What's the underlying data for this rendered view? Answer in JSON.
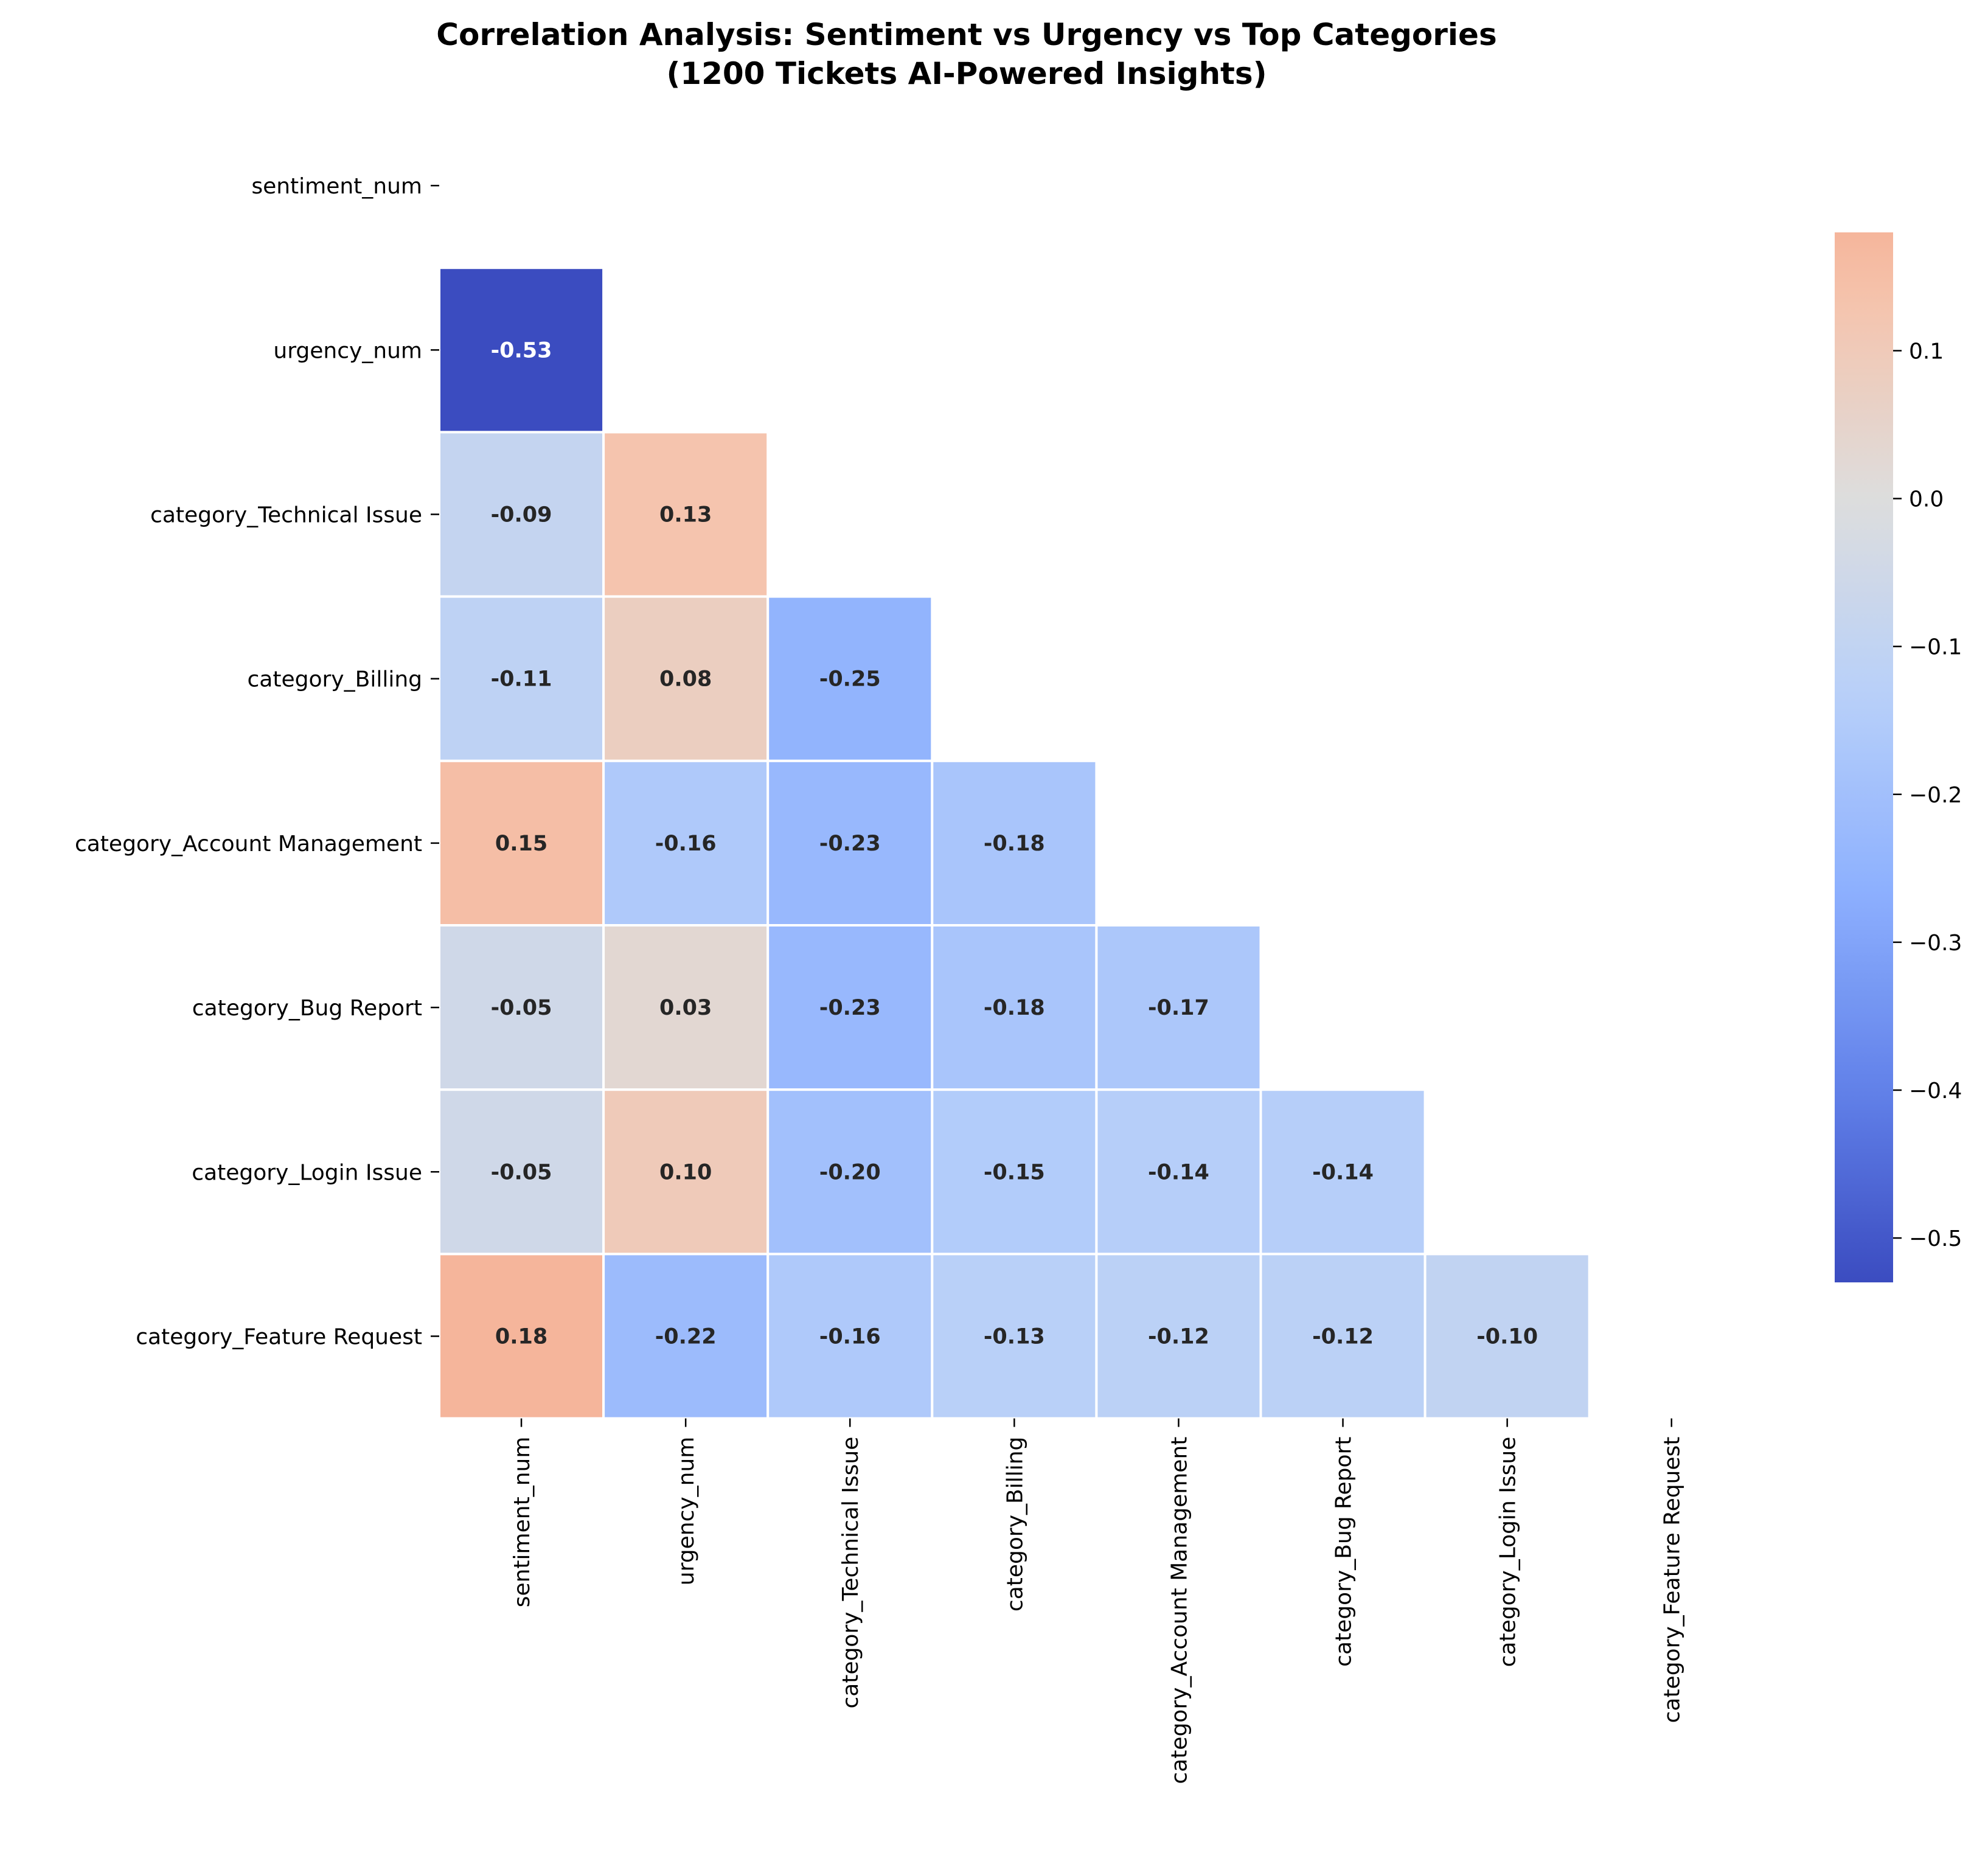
{
  "chart_data": {
    "type": "heatmap",
    "title": "Correlation Analysis: Sentiment vs Urgency vs Top Categories\n(1200 Tickets AI-Powered Insights)",
    "variables": [
      "sentiment_num",
      "urgency_num",
      "category_Technical Issue",
      "category_Billing",
      "category_Account Management",
      "category_Bug Report",
      "category_Login Issue",
      "category_Feature Request"
    ],
    "mask": "upper triangle including diagonal",
    "cells": [
      {
        "row": 1,
        "col": 0,
        "value": -0.53,
        "label": "-0.53"
      },
      {
        "row": 2,
        "col": 0,
        "value": -0.09,
        "label": "-0.09"
      },
      {
        "row": 2,
        "col": 1,
        "value": 0.13,
        "label": "0.13"
      },
      {
        "row": 3,
        "col": 0,
        "value": -0.11,
        "label": "-0.11"
      },
      {
        "row": 3,
        "col": 1,
        "value": 0.08,
        "label": "0.08"
      },
      {
        "row": 3,
        "col": 2,
        "value": -0.25,
        "label": "-0.25"
      },
      {
        "row": 4,
        "col": 0,
        "value": 0.15,
        "label": "0.15"
      },
      {
        "row": 4,
        "col": 1,
        "value": -0.16,
        "label": "-0.16"
      },
      {
        "row": 4,
        "col": 2,
        "value": -0.23,
        "label": "-0.23"
      },
      {
        "row": 4,
        "col": 3,
        "value": -0.18,
        "label": "-0.18"
      },
      {
        "row": 5,
        "col": 0,
        "value": -0.05,
        "label": "-0.05"
      },
      {
        "row": 5,
        "col": 1,
        "value": 0.03,
        "label": "0.03"
      },
      {
        "row": 5,
        "col": 2,
        "value": -0.23,
        "label": "-0.23"
      },
      {
        "row": 5,
        "col": 3,
        "value": -0.18,
        "label": "-0.18"
      },
      {
        "row": 5,
        "col": 4,
        "value": -0.17,
        "label": "-0.17"
      },
      {
        "row": 6,
        "col": 0,
        "value": -0.05,
        "label": "-0.05"
      },
      {
        "row": 6,
        "col": 1,
        "value": 0.1,
        "label": "0.10"
      },
      {
        "row": 6,
        "col": 2,
        "value": -0.2,
        "label": "-0.20"
      },
      {
        "row": 6,
        "col": 3,
        "value": -0.15,
        "label": "-0.15"
      },
      {
        "row": 6,
        "col": 4,
        "value": -0.14,
        "label": "-0.14"
      },
      {
        "row": 6,
        "col": 5,
        "value": -0.14,
        "label": "-0.14"
      },
      {
        "row": 7,
        "col": 0,
        "value": 0.18,
        "label": "0.18"
      },
      {
        "row": 7,
        "col": 1,
        "value": -0.22,
        "label": "-0.22"
      },
      {
        "row": 7,
        "col": 2,
        "value": -0.16,
        "label": "-0.16"
      },
      {
        "row": 7,
        "col": 3,
        "value": -0.13,
        "label": "-0.13"
      },
      {
        "row": 7,
        "col": 4,
        "value": -0.12,
        "label": "-0.12"
      },
      {
        "row": 7,
        "col": 5,
        "value": -0.12,
        "label": "-0.12"
      },
      {
        "row": 7,
        "col": 6,
        "value": -0.1,
        "label": "-0.10"
      }
    ],
    "colormap": "coolwarm",
    "color_range": [
      -0.53,
      0.18
    ],
    "colorbar": {
      "ticks": [
        0.1,
        0.0,
        -0.1,
        -0.2,
        -0.3,
        -0.4,
        -0.5
      ],
      "tick_labels": [
        "0.1",
        "0.0",
        "−0.1",
        "−0.2",
        "−0.3",
        "−0.4",
        "−0.5"
      ]
    },
    "grid": false,
    "legend": "colorbar at right"
  }
}
